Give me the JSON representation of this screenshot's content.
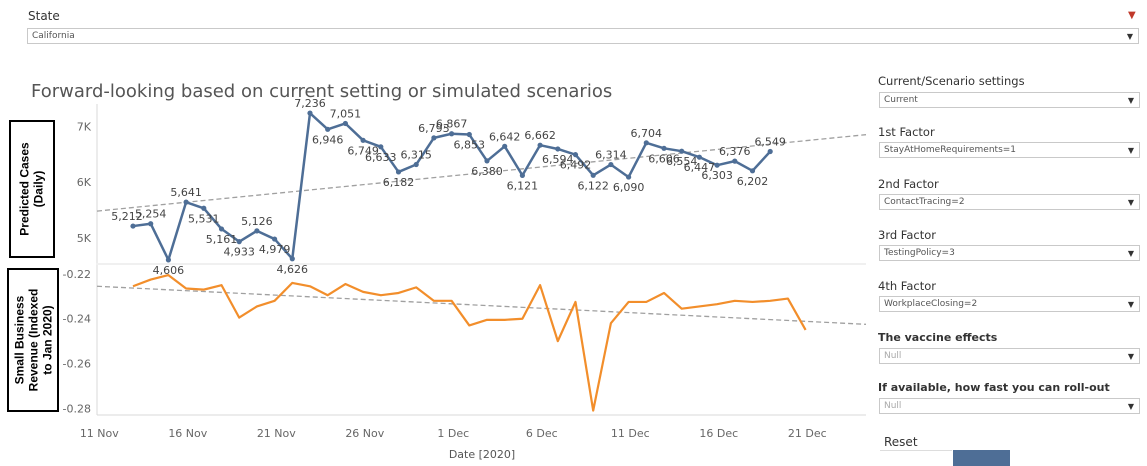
{
  "state": {
    "label": "State",
    "value": "California"
  },
  "title": "Forward-looking based on current setting  or simulated scenarios",
  "settings": [
    {
      "label": "Current/Scenario settings",
      "value": "Current",
      "bold": false
    },
    {
      "label": "1st Factor",
      "value": "StayAtHomeRequirements=1",
      "bold": false
    },
    {
      "label": "2nd Factor",
      "value": "ContactTracing=2",
      "bold": false
    },
    {
      "label": "3rd Factor",
      "value": "TestingPolicy=3",
      "bold": false
    },
    {
      "label": "4th Factor",
      "value": "WorkplaceClosing=2",
      "bold": false
    },
    {
      "label": "The vaccine effects",
      "value": "Null",
      "bold": true
    },
    {
      "label": "If available, how fast you can roll-out",
      "value": "Null",
      "bold": true
    }
  ],
  "reset_label": "Reset",
  "icons": {
    "filter": "filter-icon",
    "dropdown": "chevron-down-icon"
  },
  "colors": {
    "cases_line": "#4e6e96",
    "revenue_line": "#f28e2b",
    "trend": "#a0a0a0",
    "accent": "#4e6e96"
  },
  "chart_data": [
    {
      "type": "line",
      "ylabel": "Predicted Cases\n(Daily)",
      "yticks": [
        5000,
        6000,
        7000
      ],
      "ytick_labels": [
        "5K",
        "6K",
        "7K"
      ],
      "ylim": [
        4550,
        7400
      ],
      "trend_line": {
        "start": 5480,
        "end": 6850
      },
      "series": [
        {
          "values": [
            5212,
            5254,
            4606,
            5641,
            5531,
            5161,
            4933,
            5126,
            4979,
            4626,
            7236,
            6946,
            7051,
            6749,
            6633,
            6182,
            6315,
            6793,
            6867,
            6853,
            6380,
            6642,
            6121,
            6662,
            6594,
            6492,
            6122,
            6314,
            6090,
            6704,
            6606,
            6554,
            6447,
            6303,
            6376,
            6202,
            6549
          ],
          "labels": [
            "5,212",
            "5,254",
            "4,606",
            "5,641",
            "5,531",
            "5,161",
            "4,933",
            "5,126",
            "4,979",
            "4,626",
            "7,236",
            "6,946",
            "7,051",
            "6,749",
            "6,633",
            "6,182",
            "6,315",
            "6,793",
            "6,867",
            "6,853",
            "6,380",
            "6,642",
            "6,121",
            "6,662",
            "6,594",
            "6,492",
            "6,122",
            "6,314",
            "6,090",
            "6,704",
            "6,606",
            "6,554",
            "6,447",
            "6,303",
            "6,376",
            "6,202",
            "6,549"
          ]
        }
      ]
    },
    {
      "type": "line",
      "ylabel": "Small Business\nRevenue (Indexed\nto Jan 2020)",
      "yticks": [
        -0.28,
        -0.26,
        -0.24,
        -0.22
      ],
      "ytick_labels": [
        "-0.28",
        "-0.26",
        "-0.24",
        "-0.22"
      ],
      "ylim": [
        -0.283,
        -0.216
      ],
      "xlabel": "Date [2020]",
      "x_start": "2020-11-12",
      "xticks": [
        "11 Nov",
        "16 Nov",
        "21 Nov",
        "26 Nov",
        "1 Dec",
        "6 Dec",
        "11 Dec",
        "16 Dec",
        "21 Dec"
      ],
      "trend_line": {
        "start": -0.2255,
        "end": -0.2425
      },
      "series": [
        {
          "values": [
            -0.2255,
            -0.2225,
            -0.2205,
            -0.2265,
            -0.227,
            -0.225,
            -0.2395,
            -0.2345,
            -0.232,
            -0.224,
            -0.2255,
            -0.2295,
            -0.2245,
            -0.228,
            -0.2295,
            -0.2285,
            -0.226,
            -0.232,
            -0.232,
            -0.243,
            -0.2405,
            -0.2405,
            -0.24,
            -0.225,
            -0.25,
            -0.2325,
            -0.281,
            -0.242,
            -0.2325,
            -0.2325,
            -0.2285,
            -0.2355,
            -0.2345,
            -0.2335,
            -0.232,
            -0.2325,
            -0.232,
            -0.231,
            -0.245
          ]
        }
      ]
    }
  ]
}
